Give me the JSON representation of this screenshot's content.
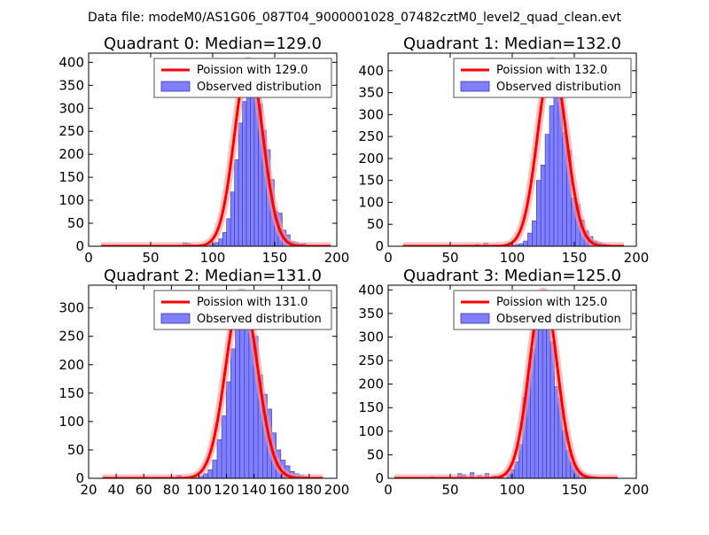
{
  "figure_title": "Data file: modeM0/AS1G06_087T04_9000001028_07482cztM0_level2_quad_clean.evt",
  "colors": {
    "bar_fill": "#7f7fff",
    "bar_edge": "#3a3aa8",
    "curve": "#ff0000",
    "curve_halo": "#ff9a9a",
    "axis": "#000000",
    "text": "#000000",
    "legend_edge": "#555555"
  },
  "chart_data": [
    {
      "type": "bar",
      "title": "Quadrant 0: Median=129.0",
      "median": 129.0,
      "xlim": [
        0,
        200
      ],
      "ylim": [
        0,
        420
      ],
      "xticks": [
        0,
        50,
        100,
        150,
        200
      ],
      "yticks": [
        0,
        50,
        100,
        150,
        200,
        250,
        300,
        350,
        400
      ],
      "legend": [
        "Poission with 129.0",
        "Observed distribution"
      ],
      "legend_loc": "upper right",
      "curve_x_range": [
        10,
        195
      ],
      "bin_width": 3.2,
      "bins": [
        {
          "x": 76,
          "y": 8
        },
        {
          "x": 79.2,
          "y": 6
        },
        {
          "x": 82.4,
          "y": 3
        },
        {
          "x": 85.6,
          "y": 2
        },
        {
          "x": 88.8,
          "y": 3
        },
        {
          "x": 92,
          "y": 2
        },
        {
          "x": 95.2,
          "y": 4
        },
        {
          "x": 98.4,
          "y": 5
        },
        {
          "x": 101.6,
          "y": 8
        },
        {
          "x": 104.8,
          "y": 16
        },
        {
          "x": 108,
          "y": 30
        },
        {
          "x": 111.2,
          "y": 60
        },
        {
          "x": 114.4,
          "y": 118
        },
        {
          "x": 117.6,
          "y": 188
        },
        {
          "x": 120.8,
          "y": 268
        },
        {
          "x": 124,
          "y": 315
        },
        {
          "x": 127.2,
          "y": 350
        },
        {
          "x": 130.4,
          "y": 392
        },
        {
          "x": 133.6,
          "y": 355
        },
        {
          "x": 136.8,
          "y": 310
        },
        {
          "x": 140,
          "y": 252
        },
        {
          "x": 143.2,
          "y": 210
        },
        {
          "x": 146.4,
          "y": 145
        },
        {
          "x": 149.6,
          "y": 75
        },
        {
          "x": 152.8,
          "y": 72
        },
        {
          "x": 156,
          "y": 35
        },
        {
          "x": 159.2,
          "y": 25
        },
        {
          "x": 162.4,
          "y": 10
        },
        {
          "x": 165.6,
          "y": 8
        },
        {
          "x": 168.8,
          "y": 5
        },
        {
          "x": 172,
          "y": 6
        },
        {
          "x": 175.2,
          "y": 2
        },
        {
          "x": 178.4,
          "y": 2
        }
      ]
    },
    {
      "type": "bar",
      "title": "Quadrant 1: Median=132.0",
      "median": 132.0,
      "xlim": [
        0,
        200
      ],
      "ylim": [
        0,
        440
      ],
      "xticks": [
        0,
        50,
        100,
        150,
        200
      ],
      "yticks": [
        0,
        50,
        100,
        150,
        200,
        250,
        300,
        350,
        400
      ],
      "legend": [
        "Poission with 132.0",
        "Observed distribution"
      ],
      "legend_loc": "upper right",
      "curve_x_range": [
        12,
        190
      ],
      "bin_width": 3.5,
      "bins": [
        {
          "x": 70,
          "y": 4
        },
        {
          "x": 77,
          "y": 7
        },
        {
          "x": 84,
          "y": 3
        },
        {
          "x": 91,
          "y": 2
        },
        {
          "x": 98,
          "y": 3
        },
        {
          "x": 102,
          "y": 4
        },
        {
          "x": 105.5,
          "y": 6
        },
        {
          "x": 109,
          "y": 12
        },
        {
          "x": 112.5,
          "y": 30
        },
        {
          "x": 116,
          "y": 58
        },
        {
          "x": 119.5,
          "y": 150
        },
        {
          "x": 123,
          "y": 185
        },
        {
          "x": 126.5,
          "y": 255
        },
        {
          "x": 130,
          "y": 320
        },
        {
          "x": 133.5,
          "y": 410
        },
        {
          "x": 137,
          "y": 375
        },
        {
          "x": 140.5,
          "y": 260
        },
        {
          "x": 144,
          "y": 218
        },
        {
          "x": 147.5,
          "y": 110
        },
        {
          "x": 151,
          "y": 95
        },
        {
          "x": 154.5,
          "y": 60
        },
        {
          "x": 158,
          "y": 35
        },
        {
          "x": 161.5,
          "y": 22
        },
        {
          "x": 165,
          "y": 12
        },
        {
          "x": 168.5,
          "y": 8
        },
        {
          "x": 172,
          "y": 5
        },
        {
          "x": 175.5,
          "y": 3
        },
        {
          "x": 179,
          "y": 2
        }
      ]
    },
    {
      "type": "bar",
      "title": "Quadrant 2: Median=131.0",
      "median": 131.0,
      "xlim": [
        20,
        200
      ],
      "ylim": [
        0,
        340
      ],
      "xticks": [
        20,
        40,
        60,
        80,
        100,
        120,
        140,
        160,
        180,
        200
      ],
      "yticks": [
        0,
        50,
        100,
        150,
        200,
        250,
        300
      ],
      "legend": [
        "Poission with 131.0",
        "Observed distribution"
      ],
      "legend_loc": "upper right",
      "curve_x_range": [
        30,
        190
      ],
      "bin_width": 3.3,
      "bins": [
        {
          "x": 84,
          "y": 5
        },
        {
          "x": 90,
          "y": 3
        },
        {
          "x": 96,
          "y": 2
        },
        {
          "x": 100,
          "y": 4
        },
        {
          "x": 103.3,
          "y": 8
        },
        {
          "x": 106.6,
          "y": 15
        },
        {
          "x": 109.9,
          "y": 32
        },
        {
          "x": 113.2,
          "y": 68
        },
        {
          "x": 116.5,
          "y": 110
        },
        {
          "x": 119.8,
          "y": 170
        },
        {
          "x": 123.1,
          "y": 228
        },
        {
          "x": 126.4,
          "y": 285
        },
        {
          "x": 129.7,
          "y": 300
        },
        {
          "x": 133,
          "y": 318
        },
        {
          "x": 136.3,
          "y": 290
        },
        {
          "x": 139.6,
          "y": 250
        },
        {
          "x": 142.9,
          "y": 182
        },
        {
          "x": 146.2,
          "y": 148
        },
        {
          "x": 149.5,
          "y": 122
        },
        {
          "x": 152.8,
          "y": 80
        },
        {
          "x": 156.1,
          "y": 50
        },
        {
          "x": 159.4,
          "y": 32
        },
        {
          "x": 162.7,
          "y": 22
        },
        {
          "x": 166,
          "y": 12
        },
        {
          "x": 169.3,
          "y": 8
        },
        {
          "x": 172.6,
          "y": 5
        },
        {
          "x": 175.9,
          "y": 3
        }
      ]
    },
    {
      "type": "bar",
      "title": "Quadrant 3: Median=125.0",
      "median": 125.0,
      "xlim": [
        0,
        200
      ],
      "ylim": [
        0,
        410
      ],
      "xticks": [
        0,
        50,
        100,
        150,
        200
      ],
      "yticks": [
        0,
        50,
        100,
        150,
        200,
        250,
        300,
        350,
        400
      ],
      "legend": [
        "Poission with 125.0",
        "Observed distribution"
      ],
      "legend_loc": "upper right",
      "curve_x_range": [
        5,
        185
      ],
      "bin_width": 3.2,
      "bins": [
        {
          "x": 34,
          "y": 3
        },
        {
          "x": 56,
          "y": 10
        },
        {
          "x": 59.2,
          "y": 8
        },
        {
          "x": 66,
          "y": 12
        },
        {
          "x": 72,
          "y": 6
        },
        {
          "x": 78,
          "y": 10
        },
        {
          "x": 84,
          "y": 5
        },
        {
          "x": 90,
          "y": 4
        },
        {
          "x": 95.6,
          "y": 10
        },
        {
          "x": 98.8,
          "y": 18
        },
        {
          "x": 102,
          "y": 35
        },
        {
          "x": 105.2,
          "y": 72
        },
        {
          "x": 108.4,
          "y": 172
        },
        {
          "x": 111.6,
          "y": 215
        },
        {
          "x": 114.8,
          "y": 275
        },
        {
          "x": 118,
          "y": 340
        },
        {
          "x": 121.2,
          "y": 385
        },
        {
          "x": 124.4,
          "y": 370
        },
        {
          "x": 127.6,
          "y": 342
        },
        {
          "x": 130.8,
          "y": 290
        },
        {
          "x": 134,
          "y": 195
        },
        {
          "x": 137.2,
          "y": 170
        },
        {
          "x": 140.4,
          "y": 102
        },
        {
          "x": 143.6,
          "y": 60
        },
        {
          "x": 146.8,
          "y": 35
        },
        {
          "x": 150,
          "y": 20
        },
        {
          "x": 153.2,
          "y": 12
        },
        {
          "x": 156.4,
          "y": 8
        },
        {
          "x": 159.6,
          "y": 6
        },
        {
          "x": 162.8,
          "y": 4
        },
        {
          "x": 166,
          "y": 3
        }
      ]
    }
  ]
}
